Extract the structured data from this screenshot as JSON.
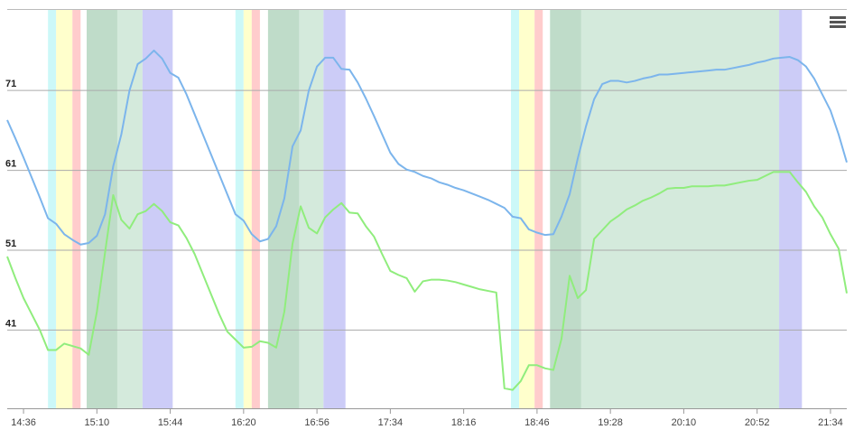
{
  "chart_data": {
    "type": "line",
    "categories": [
      null,
      null,
      "14:36",
      null,
      null,
      null,
      null,
      null,
      null,
      null,
      null,
      "15:10",
      null,
      null,
      null,
      null,
      null,
      null,
      null,
      null,
      "15:44",
      null,
      null,
      null,
      null,
      null,
      null,
      null,
      null,
      "16:20",
      null,
      null,
      null,
      null,
      null,
      null,
      null,
      null,
      "16:56",
      null,
      null,
      null,
      null,
      null,
      null,
      null,
      null,
      "17:34",
      null,
      null,
      null,
      null,
      null,
      null,
      null,
      null,
      "18:16",
      null,
      null,
      null,
      null,
      null,
      null,
      null,
      null,
      "18:46",
      null,
      null,
      null,
      null,
      null,
      null,
      null,
      null,
      "19:28",
      null,
      null,
      null,
      null,
      null,
      null,
      null,
      null,
      "20:10",
      null,
      null,
      null,
      null,
      null,
      null,
      null,
      null,
      "20:52",
      null,
      null,
      null,
      null,
      null,
      null,
      null,
      null,
      "21:34",
      null,
      null
    ],
    "series": [
      {
        "color": "#7cb5ec",
        "values": [
          67.3,
          65.0,
          62.6,
          60.1,
          57.6,
          55.0,
          54.3,
          53.0,
          52.3,
          51.7,
          51.9,
          52.8,
          55.5,
          61.5,
          65.5,
          71.0,
          74.3,
          75.0,
          76.0,
          75.0,
          73.2,
          72.6,
          70.5,
          68.0,
          65.5,
          63.0,
          60.5,
          58.0,
          55.5,
          54.7,
          53.0,
          52.1,
          52.4,
          54.0,
          57.5,
          64.0,
          66.0,
          71.0,
          74.0,
          75.1,
          75.1,
          73.7,
          73.6,
          72.0,
          70.0,
          67.8,
          65.5,
          63.2,
          61.8,
          61.1,
          60.8,
          60.3,
          60.0,
          59.5,
          59.2,
          58.8,
          58.5,
          58.1,
          57.7,
          57.3,
          56.8,
          56.3,
          55.2,
          55.0,
          53.6,
          53.2,
          52.9,
          53.0,
          55.2,
          58.0,
          62.5,
          66.5,
          69.9,
          71.8,
          72.2,
          72.2,
          72.0,
          72.2,
          72.5,
          72.7,
          73.0,
          73.0,
          73.1,
          73.2,
          73.3,
          73.4,
          73.5,
          73.6,
          73.6,
          73.8,
          74.0,
          74.2,
          74.5,
          74.7,
          75.0,
          75.1,
          75.2,
          74.8,
          74.0,
          72.5,
          70.5,
          68.5,
          65.5,
          62.0
        ]
      },
      {
        "color": "#90ed7d",
        "values": [
          50.2,
          47.5,
          45.0,
          43.0,
          41.0,
          38.5,
          38.5,
          39.3,
          39.0,
          38.7,
          37.9,
          43.3,
          50.7,
          57.9,
          54.8,
          53.7,
          55.5,
          55.9,
          56.8,
          55.9,
          54.5,
          54.1,
          52.5,
          50.5,
          48.0,
          45.5,
          43.0,
          40.8,
          39.8,
          38.8,
          38.9,
          39.6,
          39.4,
          38.8,
          43.3,
          51.8,
          56.5,
          53.8,
          53.1,
          55.1,
          56.1,
          56.9,
          55.7,
          55.6,
          54.0,
          52.7,
          50.5,
          48.4,
          47.9,
          47.5,
          45.8,
          47.1,
          47.3,
          47.3,
          47.2,
          47.0,
          46.7,
          46.4,
          46.1,
          45.9,
          45.7,
          33.7,
          33.5,
          34.6,
          36.6,
          36.6,
          36.2,
          36.0,
          39.9,
          47.8,
          45.0,
          46.0,
          52.4,
          53.5,
          54.6,
          55.3,
          56.1,
          56.6,
          57.2,
          57.6,
          58.1,
          58.7,
          58.8,
          58.8,
          59.0,
          59.0,
          59.0,
          59.1,
          59.1,
          59.3,
          59.5,
          59.7,
          59.8,
          60.3,
          60.8,
          60.8,
          60.8,
          59.5,
          58.3,
          56.5,
          55.1,
          53.0,
          51.2,
          45.6
        ]
      }
    ],
    "bands": [
      {
        "from": 5,
        "to": 6,
        "color": "#ccf8f8"
      },
      {
        "from": 6,
        "to": 8,
        "color": "#ffffcc"
      },
      {
        "from": 8,
        "to": 9,
        "color": "#ffcccc"
      },
      {
        "from": 9.75,
        "to": 16.6,
        "color": "#d4eadc"
      },
      {
        "from": 9.75,
        "to": 13.5,
        "color": "#bfdcc9"
      },
      {
        "from": 16.6,
        "to": 20.3,
        "color": "#ccccf7"
      },
      {
        "from": 28,
        "to": 29,
        "color": "#ccf8f8"
      },
      {
        "from": 29,
        "to": 30,
        "color": "#ffffcc"
      },
      {
        "from": 30,
        "to": 31,
        "color": "#ffcccc"
      },
      {
        "from": 32,
        "to": 38.8,
        "color": "#d4eadc"
      },
      {
        "from": 32,
        "to": 35.8,
        "color": "#bfdcc9"
      },
      {
        "from": 38.8,
        "to": 41.5,
        "color": "#ccccf7"
      },
      {
        "from": 61.8,
        "to": 62.8,
        "color": "#ccf8f8"
      },
      {
        "from": 62.8,
        "to": 64.7,
        "color": "#ffffcc"
      },
      {
        "from": 64.7,
        "to": 65.7,
        "color": "#ffcccc"
      },
      {
        "from": 66.6,
        "to": 94.7,
        "color": "#d4eadc"
      },
      {
        "from": 66.6,
        "to": 70.4,
        "color": "#bfdcc9"
      },
      {
        "from": 94.7,
        "to": 97.5,
        "color": "#ccccf7"
      }
    ],
    "ylim": [
      31.2,
      81.2
    ],
    "yticks": [
      41,
      51,
      61,
      71
    ],
    "grid": true
  }
}
